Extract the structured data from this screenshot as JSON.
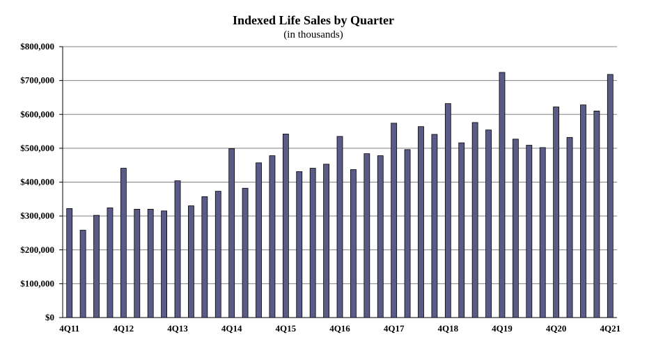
{
  "chart_data": {
    "type": "bar",
    "title": "Indexed Life Sales by Quarter",
    "subtitle": "(in thousands)",
    "xlabel": "",
    "ylabel": "",
    "ylim": [
      0,
      800000
    ],
    "yticks": [
      "$0",
      "$100,000",
      "$200,000",
      "$300,000",
      "$400,000",
      "$500,000",
      "$600,000",
      "$700,000",
      "$800,000"
    ],
    "x_tick_labels": [
      "4Q11",
      "4Q12",
      "4Q13",
      "4Q14",
      "4Q15",
      "4Q16",
      "4Q17",
      "4Q18",
      "4Q19",
      "4Q20",
      "4Q21"
    ],
    "categories": [
      "4Q11",
      "1Q12",
      "2Q12",
      "3Q12",
      "4Q12",
      "1Q13",
      "2Q13",
      "3Q13",
      "4Q13",
      "1Q14",
      "2Q14",
      "3Q14",
      "4Q14",
      "1Q15",
      "2Q15",
      "3Q15",
      "4Q15",
      "1Q16",
      "2Q16",
      "3Q16",
      "4Q16",
      "1Q17",
      "2Q17",
      "3Q17",
      "4Q17",
      "1Q18",
      "2Q18",
      "3Q18",
      "4Q18",
      "1Q19",
      "2Q19",
      "3Q19",
      "4Q19",
      "1Q20",
      "2Q20",
      "3Q20",
      "4Q20",
      "1Q21",
      "2Q21",
      "3Q21",
      "4Q21"
    ],
    "values": [
      322000,
      258000,
      302000,
      324000,
      441000,
      320000,
      320000,
      315000,
      404000,
      330000,
      357000,
      373000,
      499000,
      382000,
      457000,
      478000,
      542000,
      431000,
      441000,
      453000,
      535000,
      437000,
      484000,
      478000,
      574000,
      496000,
      564000,
      541000,
      632000,
      516000,
      576000,
      554000,
      724000,
      527000,
      509000,
      502000,
      622000,
      532000,
      628000,
      610000,
      718000
    ],
    "grid": true,
    "colors": {
      "bar": "#5b5b88",
      "bar_edge": "#000000",
      "grid": "#808080",
      "axis": "#000000"
    }
  }
}
